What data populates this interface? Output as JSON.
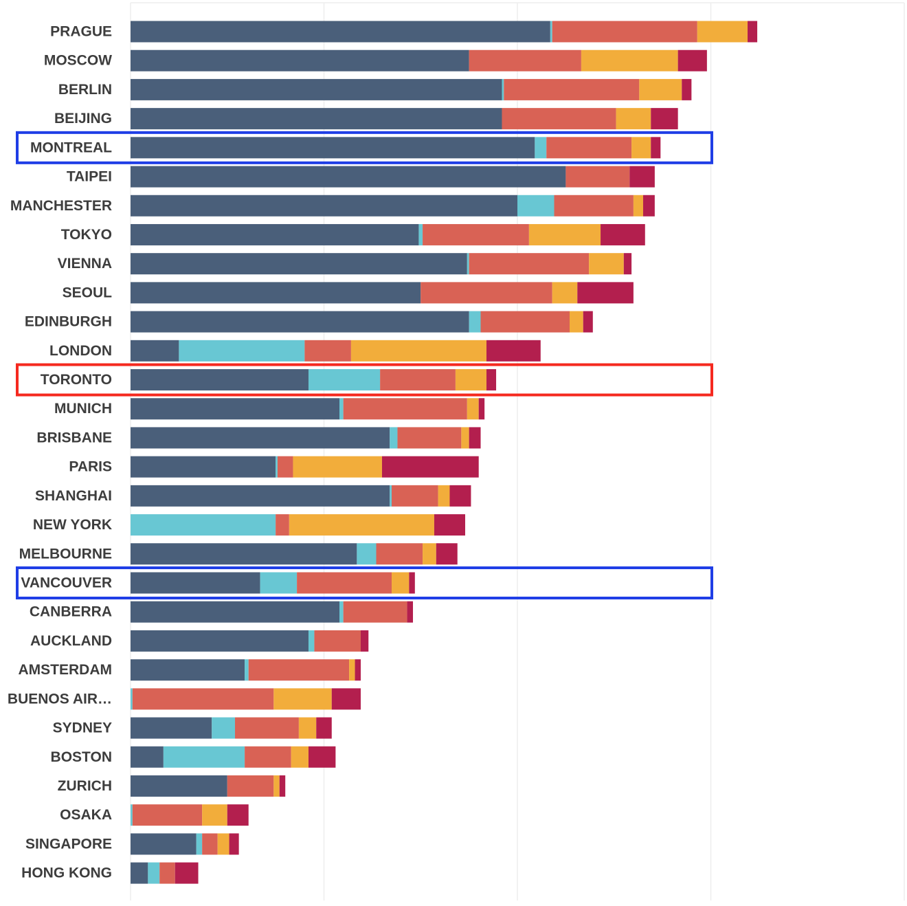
{
  "chart_data": {
    "type": "bar",
    "orientation": "horizontal",
    "stacked": true,
    "grid": true,
    "title": "",
    "xlabel": "",
    "ylabel": "",
    "xlim": [
      0,
      20
    ],
    "colors": [
      "#4a5f7a",
      "#68c7d3",
      "#d96255",
      "#f2ad3b",
      "#b31f4e"
    ],
    "categories": [
      "PRAGUE",
      "MOSCOW",
      "BERLIN",
      "BEIJING",
      "MONTREAL",
      "TAIPEI",
      "MANCHESTER",
      "TOKYO",
      "VIENNA",
      "SEOUL",
      "EDINBURGH",
      "LONDON",
      "TORONTO",
      "MUNICH",
      "BRISBANE",
      "PARIS",
      "SHANGHAI",
      "NEW YORK",
      "MELBOURNE",
      "VANCOUVER",
      "CANBERRA",
      "AUCKLAND",
      "AMSTERDAM",
      "BUENOS AIR…",
      "SYDNEY",
      "BOSTON",
      "ZURICH",
      "OSAKA",
      "SINGAPORE",
      "HONG KONG"
    ],
    "series": [
      {
        "values": [
          10.85,
          8.75,
          9.6,
          9.6,
          10.45,
          11.25,
          10.0,
          7.45,
          8.7,
          7.5,
          8.75,
          1.25,
          4.6,
          5.4,
          6.7,
          3.75,
          6.7,
          0.0,
          5.85,
          3.35,
          5.4,
          4.6,
          2.95,
          0.0,
          2.1,
          0.85,
          2.5,
          0.0,
          1.7,
          0.45
        ]
      },
      {
        "values": [
          0.05,
          0.0,
          0.05,
          0.0,
          0.3,
          0.0,
          0.95,
          0.1,
          0.05,
          0.0,
          0.3,
          3.25,
          1.85,
          0.1,
          0.2,
          0.05,
          0.05,
          3.75,
          0.5,
          0.95,
          0.1,
          0.15,
          0.1,
          0.05,
          0.6,
          2.1,
          0.0,
          0.05,
          0.15,
          0.3
        ]
      },
      {
        "values": [
          3.75,
          2.9,
          3.5,
          2.95,
          2.2,
          1.65,
          2.05,
          2.75,
          3.1,
          3.4,
          2.3,
          1.2,
          1.95,
          3.2,
          1.65,
          0.4,
          1.2,
          0.35,
          1.2,
          2.45,
          1.65,
          1.2,
          2.6,
          3.65,
          1.65,
          1.2,
          1.2,
          1.8,
          0.4,
          0.4
        ]
      },
      {
        "values": [
          1.3,
          2.5,
          1.1,
          0.9,
          0.5,
          0.0,
          0.25,
          1.85,
          0.9,
          0.65,
          0.35,
          3.5,
          0.8,
          0.3,
          0.2,
          2.3,
          0.3,
          3.75,
          0.35,
          0.45,
          0.0,
          0.0,
          0.15,
          1.5,
          0.45,
          0.45,
          0.15,
          0.65,
          0.3,
          0.0
        ]
      },
      {
        "values": [
          0.25,
          0.75,
          0.25,
          0.7,
          0.25,
          0.65,
          0.3,
          1.15,
          0.2,
          1.45,
          0.25,
          1.4,
          0.25,
          0.15,
          0.3,
          2.5,
          0.55,
          0.8,
          0.55,
          0.15,
          0.15,
          0.2,
          0.15,
          0.75,
          0.4,
          0.7,
          0.15,
          0.55,
          0.25,
          0.6
        ]
      }
    ],
    "highlights": [
      {
        "category": "MONTREAL",
        "color": "#1f3ee6"
      },
      {
        "category": "TORONTO",
        "color": "#f5291f"
      },
      {
        "category": "VANCOUVER",
        "color": "#1f3ee6"
      }
    ]
  }
}
